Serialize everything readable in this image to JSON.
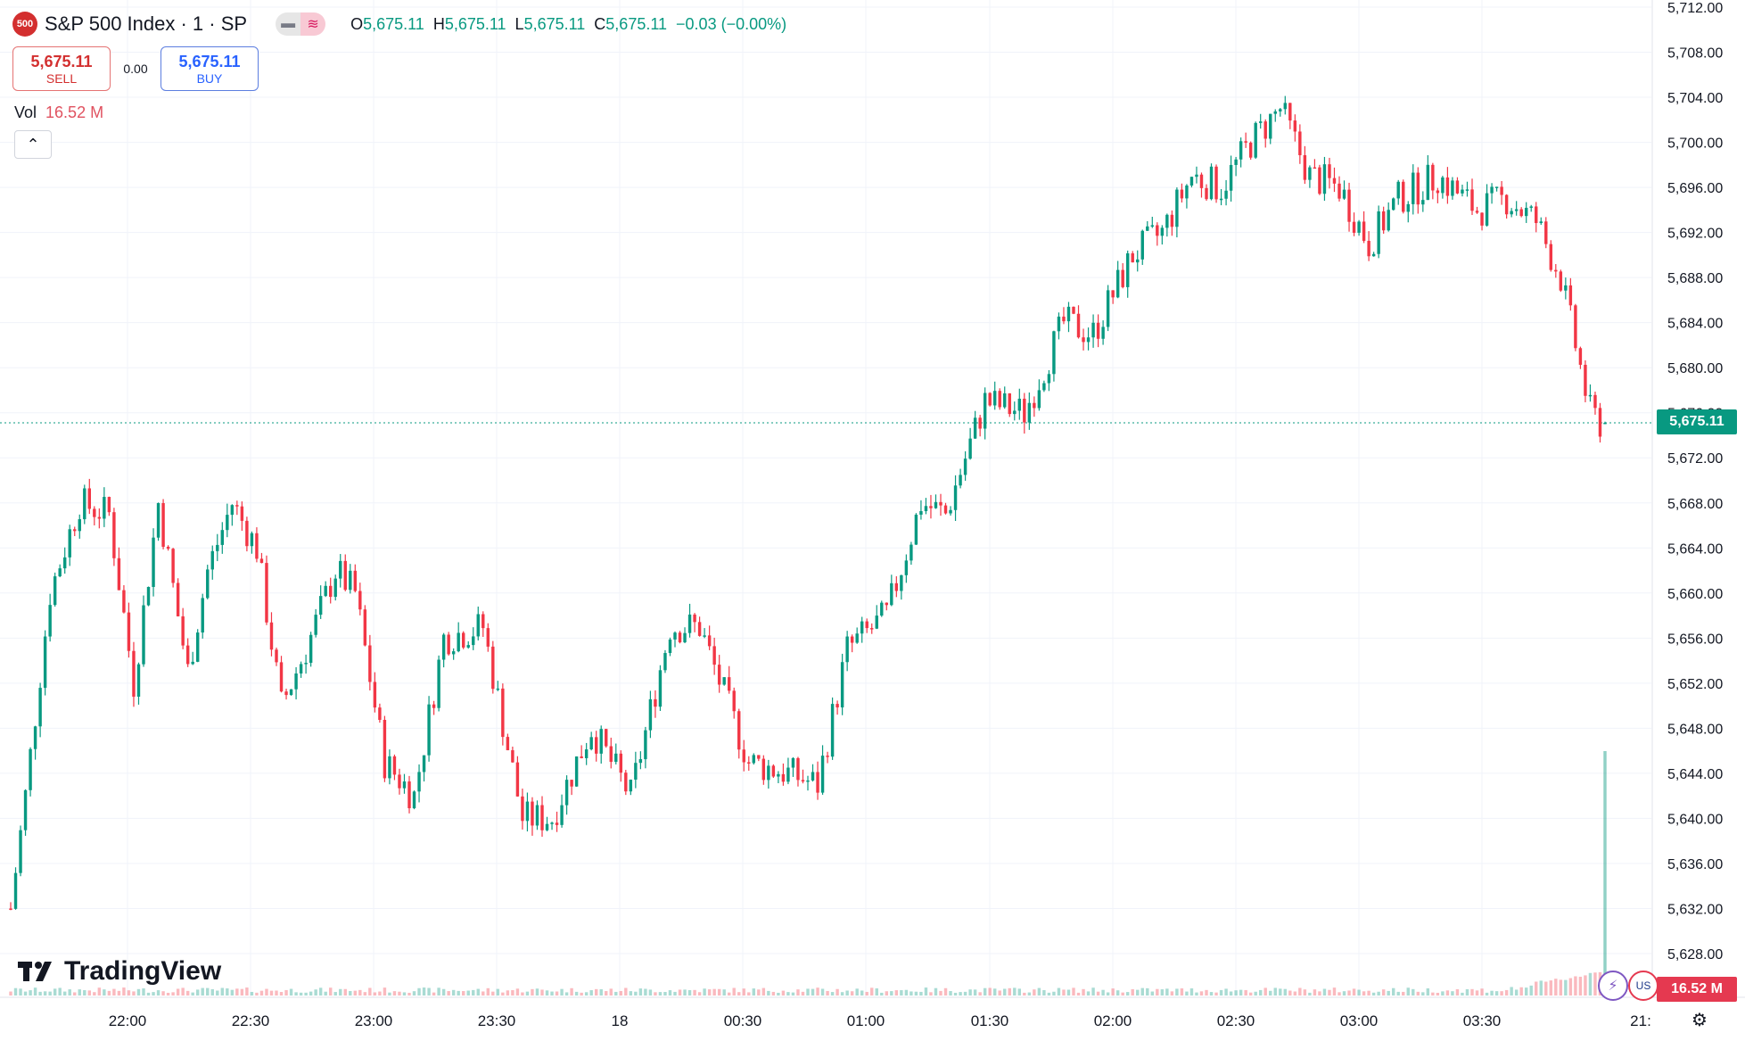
{
  "header": {
    "logo_badge": "500",
    "symbol": "S&P 500 Index · 1 · SP",
    "ohlc": {
      "o_label": "O",
      "o_value": "5,675.11",
      "h_label": "H",
      "h_value": "5,675.11",
      "l_label": "L",
      "l_value": "5,675.11",
      "c_label": "C",
      "c_value": "5,675.11",
      "change": "−0.03 (−0.00%)"
    }
  },
  "trade": {
    "sell_price": "5,675.11",
    "sell_label": "SELL",
    "spread": "0.00",
    "buy_price": "5,675.11",
    "buy_label": "BUY"
  },
  "volume": {
    "label": "Vol",
    "value": "16.52 M"
  },
  "brand": "TradingView",
  "price_tag": "5,675.11",
  "volume_tag": "16.52 M",
  "icons": [
    "collapse-chevron-icon",
    "lightning-icon",
    "us-flag-icon",
    "settings-gear-icon"
  ],
  "colors": {
    "up": "#089981",
    "down": "#f23645",
    "price_tag": "#089981",
    "volume_tag": "#e53950"
  },
  "chart_data": {
    "type": "candlestick",
    "yaxis": {
      "ticks": [
        "5,712.00",
        "5,708.00",
        "5,704.00",
        "5,700.00",
        "5,696.00",
        "5,692.00",
        "5,688.00",
        "5,684.00",
        "5,680.00",
        "5,676.00",
        "5,672.00",
        "5,668.00",
        "5,664.00",
        "5,660.00",
        "5,656.00",
        "5,652.00",
        "5,648.00",
        "5,644.00",
        "5,640.00",
        "5,636.00",
        "5,632.00",
        "5,628.00"
      ],
      "range": [
        5626,
        5713
      ]
    },
    "xaxis": {
      "ticks": [
        "22:00",
        "22:30",
        "23:00",
        "23:30",
        "18",
        "00:30",
        "01:00",
        "01:30",
        "02:00",
        "02:30",
        "03:00",
        "03:30",
        "21:"
      ]
    },
    "last_price": 5675.11,
    "path": [
      [
        0,
        5632
      ],
      [
        3,
        5642
      ],
      [
        8,
        5660
      ],
      [
        14,
        5668
      ],
      [
        20,
        5667
      ],
      [
        25,
        5652
      ],
      [
        30,
        5668
      ],
      [
        36,
        5653
      ],
      [
        40,
        5662
      ],
      [
        45,
        5668
      ],
      [
        50,
        5664
      ],
      [
        55,
        5650
      ],
      [
        60,
        5655
      ],
      [
        66,
        5662
      ],
      [
        70,
        5660
      ],
      [
        76,
        5645
      ],
      [
        82,
        5642
      ],
      [
        88,
        5656
      ],
      [
        96,
        5657
      ],
      [
        104,
        5640
      ],
      [
        110,
        5640
      ],
      [
        118,
        5648
      ],
      [
        126,
        5642
      ],
      [
        134,
        5657
      ],
      [
        140,
        5657
      ],
      [
        150,
        5645
      ],
      [
        158,
        5644
      ],
      [
        164,
        5643
      ],
      [
        170,
        5655
      ],
      [
        178,
        5658
      ],
      [
        185,
        5668
      ],
      [
        190,
        5667
      ],
      [
        198,
        5677
      ],
      [
        206,
        5676
      ],
      [
        214,
        5684
      ],
      [
        220,
        5683
      ],
      [
        228,
        5690
      ],
      [
        234,
        5692
      ],
      [
        240,
        5697
      ],
      [
        246,
        5696
      ],
      [
        252,
        5700
      ],
      [
        258,
        5703
      ],
      [
        264,
        5697
      ],
      [
        270,
        5696
      ],
      [
        276,
        5691
      ],
      [
        282,
        5695
      ],
      [
        290,
        5697
      ],
      [
        298,
        5694
      ],
      [
        304,
        5695
      ],
      [
        310,
        5693
      ],
      [
        315,
        5688
      ],
      [
        318,
        5682
      ],
      [
        321,
        5676
      ],
      [
        323,
        5675.11
      ]
    ]
  }
}
